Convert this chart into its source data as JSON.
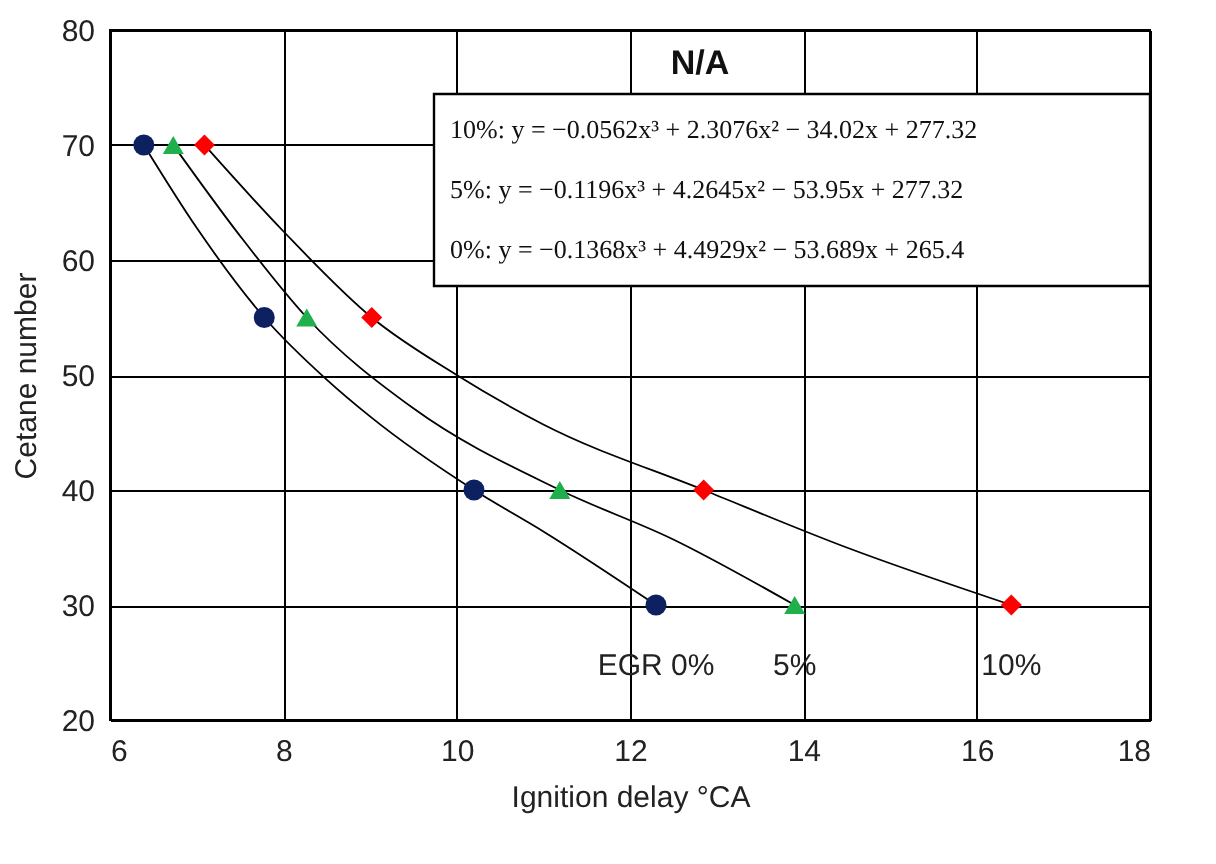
{
  "chart_data": {
    "type": "scatter",
    "title": "N/A",
    "xlabel": "Ignition delay °CA",
    "ylabel": "Cetane number",
    "xlim": [
      6,
      18
    ],
    "xticks": [
      6,
      8,
      10,
      12,
      14,
      16,
      18
    ],
    "ylim": [
      20,
      80
    ],
    "yticks": [
      20,
      30,
      40,
      50,
      60,
      70,
      80
    ],
    "grid": true,
    "annotations": [
      "10%: y = −0.0562x³ + 2.3076x² − 34.02x + 277.32",
      "5%: y = −0.1196x³ + 4.2645x² − 53.95x + 277.32",
      "0%: y = −0.1368x³ + 4.4929x² − 53.689x + 265.4"
    ],
    "series": [
      {
        "type": "line",
        "color": "#000000",
        "x": [
          6.39,
          7,
          7.78,
          8.5,
          9,
          10.2,
          11,
          12.3
        ],
        "values": [
          70,
          62.8,
          55,
          49.6,
          46.4,
          40,
          36.4,
          30
        ]
      },
      {
        "type": "line",
        "color": "#000000",
        "x": [
          6.73,
          7.5,
          8.27,
          9.5,
          11.19,
          12.5,
          13.9
        ],
        "values": [
          70,
          62.1,
          55,
          47.1,
          40,
          35.7,
          30
        ]
      },
      {
        "type": "line",
        "color": "#000000",
        "x": [
          7.09,
          8,
          9.02,
          10,
          11,
          12.85,
          14.5,
          16.4
        ],
        "values": [
          70,
          62.5,
          55,
          50,
          45.7,
          40,
          35,
          30
        ]
      },
      {
        "name": "EGR 0%",
        "color": "#0d2160",
        "marker": "circle",
        "x": [
          6.39,
          7.78,
          10.2,
          12.3
        ],
        "values": [
          70,
          55,
          40,
          30
        ]
      },
      {
        "name": "5%",
        "color": "#1fb04c",
        "marker": "triangle",
        "x": [
          6.73,
          8.27,
          11.19,
          13.9
        ],
        "values": [
          70,
          55,
          40,
          30
        ]
      },
      {
        "name": "10%",
        "color": "#ff0000",
        "marker": "diamond",
        "x": [
          7.09,
          9.02,
          12.85,
          16.4
        ],
        "values": [
          70,
          55,
          40,
          30
        ]
      }
    ]
  }
}
